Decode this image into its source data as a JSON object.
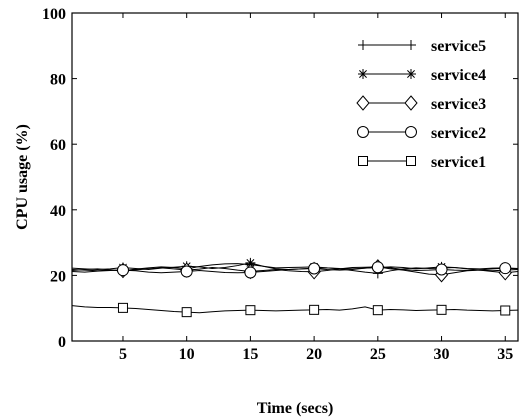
{
  "chart_data": {
    "type": "line",
    "xlabel": "Time (secs)",
    "ylabel": "CPU usage (%)",
    "xlim": [
      1,
      36
    ],
    "ylim": [
      0,
      100
    ],
    "xticks": [
      5,
      10,
      15,
      20,
      25,
      30,
      35
    ],
    "yticks": [
      0,
      20,
      40,
      60,
      80,
      100
    ],
    "grid": false,
    "legend_position": "top-right",
    "colors": {
      "line": "#000000",
      "background": "#ffffff"
    },
    "x": [
      1,
      2,
      3,
      4,
      5,
      6,
      7,
      8,
      9,
      10,
      11,
      12,
      13,
      14,
      15,
      16,
      17,
      18,
      19,
      20,
      21,
      22,
      23,
      24,
      25,
      26,
      27,
      28,
      29,
      30,
      31,
      32,
      33,
      34,
      35,
      36
    ],
    "marker_x": [
      5,
      10,
      15,
      20,
      25,
      30,
      35
    ],
    "series": [
      {
        "name": "service5",
        "marker": "plus",
        "values": [
          21.5,
          21.8,
          22.0,
          21.7,
          21.4,
          21.9,
          22.3,
          22.6,
          22.4,
          22.0,
          22.7,
          23.2,
          23.5,
          23.6,
          23.3,
          22.8,
          22.0,
          21.8,
          22.0,
          22.2,
          22.3,
          22.0,
          21.5,
          21.0,
          20.6,
          21.4,
          22.0,
          22.3,
          22.1,
          22.2,
          22.4,
          22.0,
          21.6,
          21.4,
          21.6,
          21.8
        ]
      },
      {
        "name": "service4",
        "marker": "asterisk",
        "values": [
          22.2,
          22.0,
          21.8,
          22.0,
          22.4,
          22.1,
          21.8,
          22.2,
          22.5,
          22.8,
          22.6,
          22.1,
          22.4,
          23.0,
          23.8,
          22.8,
          22.3,
          22.4,
          22.5,
          22.6,
          22.3,
          22.1,
          22.0,
          22.2,
          22.4,
          22.6,
          22.4,
          22.0,
          22.3,
          22.6,
          22.4,
          22.1,
          22.0,
          22.2,
          22.3,
          22.1
        ]
      },
      {
        "name": "service3",
        "marker": "diamond",
        "values": [
          21.8,
          21.6,
          21.4,
          21.6,
          21.5,
          21.7,
          22.0,
          22.3,
          22.0,
          21.6,
          21.9,
          22.4,
          22.1,
          21.6,
          21.2,
          21.5,
          21.8,
          21.4,
          21.2,
          21.1,
          21.5,
          22.0,
          22.4,
          22.5,
          22.6,
          22.0,
          21.6,
          21.0,
          20.4,
          20.2,
          20.8,
          21.4,
          21.6,
          21.2,
          20.8,
          21.2
        ]
      },
      {
        "name": "service2",
        "marker": "circle",
        "values": [
          21.2,
          21.0,
          21.3,
          21.5,
          21.6,
          21.4,
          21.0,
          20.8,
          21.0,
          21.2,
          21.5,
          21.2,
          20.9,
          20.8,
          20.9,
          21.2,
          21.5,
          21.8,
          22.0,
          22.1,
          21.8,
          21.6,
          21.8,
          22.2,
          22.5,
          22.3,
          21.8,
          21.5,
          21.6,
          21.8,
          21.6,
          21.5,
          21.7,
          22.0,
          22.2,
          22.0
        ]
      },
      {
        "name": "service1",
        "marker": "square",
        "values": [
          10.8,
          10.4,
          10.2,
          10.2,
          10.1,
          9.9,
          9.6,
          9.3,
          9.0,
          8.8,
          8.6,
          8.9,
          9.2,
          9.3,
          9.4,
          9.3,
          9.2,
          9.3,
          9.4,
          9.5,
          9.6,
          9.4,
          9.8,
          10.4,
          9.4,
          9.6,
          9.5,
          9.3,
          9.4,
          9.5,
          9.6,
          9.4,
          9.3,
          9.2,
          9.3,
          9.4
        ]
      }
    ]
  }
}
